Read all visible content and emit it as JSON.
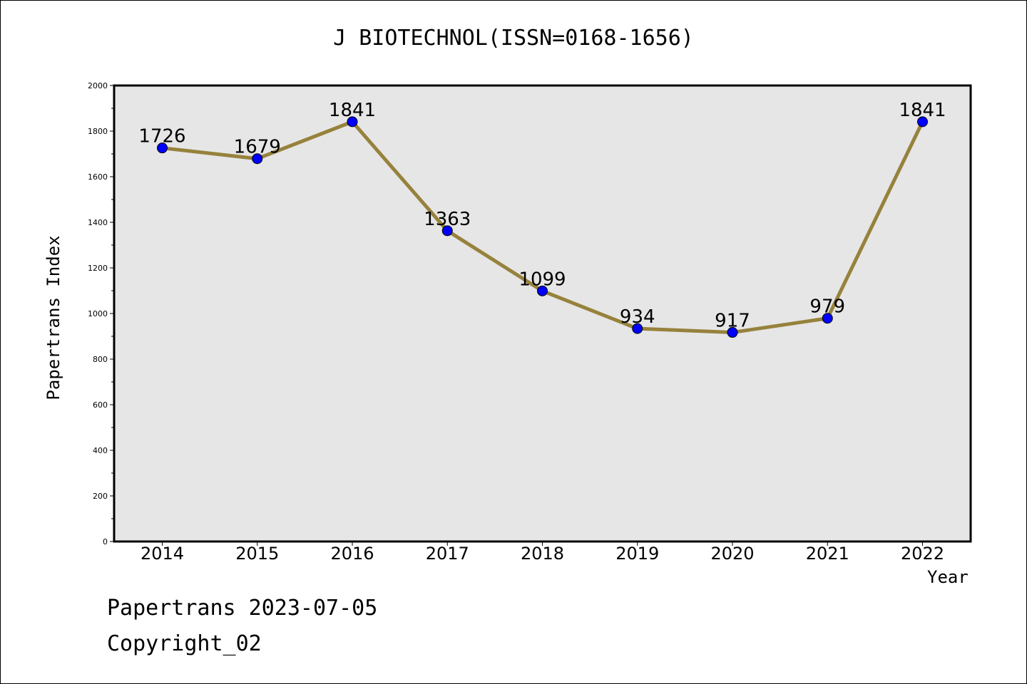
{
  "chart_data": {
    "type": "line",
    "title": "J BIOTECHNOL(ISSN=0168-1656)",
    "xlabel": "Year",
    "ylabel": "Papertrans Index",
    "categories": [
      "2014",
      "2015",
      "2016",
      "2017",
      "2018",
      "2019",
      "2020",
      "2021",
      "2022"
    ],
    "series": [
      {
        "values": [
          1726,
          1679,
          1841,
          1363,
          1099,
          934,
          917,
          979,
          1841
        ]
      }
    ],
    "data_labels": [
      "1726",
      "1679",
      "1841",
      "1363",
      "1099",
      "934",
      "917",
      "979",
      "1841"
    ],
    "ylim": [
      0,
      2000
    ],
    "yticks": [
      "0",
      "200",
      "400",
      "600",
      "800",
      "1000",
      "1200",
      "1400",
      "1600",
      "1800",
      "2000"
    ],
    "grid": false,
    "colors": {
      "line": "#96823c",
      "marker": "#0000ff",
      "plot_bg": "#e6e6e6"
    }
  },
  "footer": {
    "date_text": "Papertrans 2023-07-05",
    "copyright_text": "Copyright_02"
  }
}
